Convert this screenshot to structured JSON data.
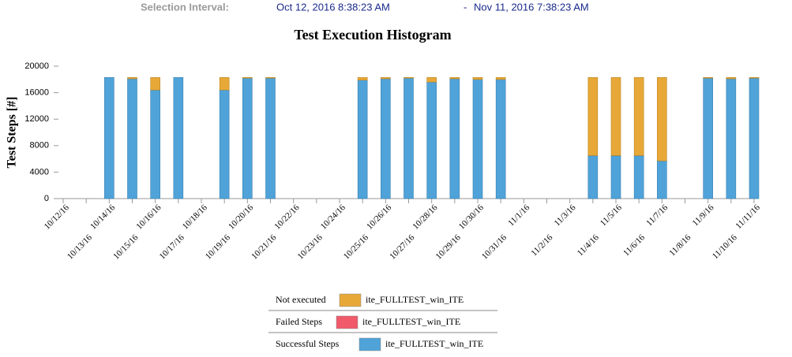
{
  "header": {
    "label": "Selection Interval:",
    "start": "Oct 12, 2016 8:38:23 AM",
    "separator": "-",
    "end": "Nov 11, 2016 7:38:23 AM"
  },
  "chart_data": {
    "type": "bar",
    "stacked": true,
    "title": "Test Execution Histogram",
    "y_label": "Test Steps [#]",
    "categories": [
      "10/12/16",
      "10/13/16",
      "10/14/16",
      "10/15/16",
      "10/16/16",
      "10/17/16",
      "10/18/16",
      "10/19/16",
      "10/20/16",
      "10/21/16",
      "10/22/16",
      "10/23/16",
      "10/24/16",
      "10/25/16",
      "10/26/16",
      "10/27/16",
      "10/28/16",
      "10/29/16",
      "10/30/16",
      "10/31/16",
      "11/1/16",
      "11/2/16",
      "11/3/16",
      "11/4/16",
      "11/5/16",
      "11/6/16",
      "11/7/16",
      "11/8/16",
      "11/9/16",
      "11/10/16",
      "11/11/16"
    ],
    "ylim": [
      0,
      20000
    ],
    "yticks": [
      0,
      4000,
      8000,
      12000,
      16000,
      20000
    ],
    "series": [
      {
        "name": "Not executed",
        "label": "ite_FULLTEST_win_ITE",
        "color": "#e8a838",
        "values": [
          null,
          null,
          0,
          200,
          1900,
          0,
          null,
          1900,
          100,
          100,
          null,
          null,
          null,
          400,
          200,
          100,
          700,
          200,
          300,
          300,
          null,
          null,
          null,
          11800,
          11800,
          11800,
          12600,
          null,
          100,
          200,
          100
        ]
      },
      {
        "name": "Failed Steps",
        "label": "ite_FULLTEST_win_ITE",
        "color": "#f05a6a",
        "values": [
          null,
          null,
          0,
          0,
          0,
          0,
          null,
          0,
          0,
          0,
          null,
          null,
          null,
          0,
          0,
          0,
          0,
          0,
          0,
          0,
          null,
          null,
          null,
          0,
          0,
          0,
          0,
          null,
          0,
          0,
          0
        ]
      },
      {
        "name": "Successful Steps",
        "label": "ite_FULLTEST_win_ITE",
        "color": "#4fa3d9",
        "values": [
          null,
          null,
          18300,
          18100,
          16400,
          18300,
          null,
          16400,
          18200,
          18200,
          null,
          null,
          null,
          17900,
          18100,
          18200,
          17600,
          18100,
          18000,
          18000,
          null,
          null,
          null,
          6500,
          6500,
          6500,
          5700,
          null,
          18200,
          18100,
          18200
        ]
      }
    ]
  }
}
